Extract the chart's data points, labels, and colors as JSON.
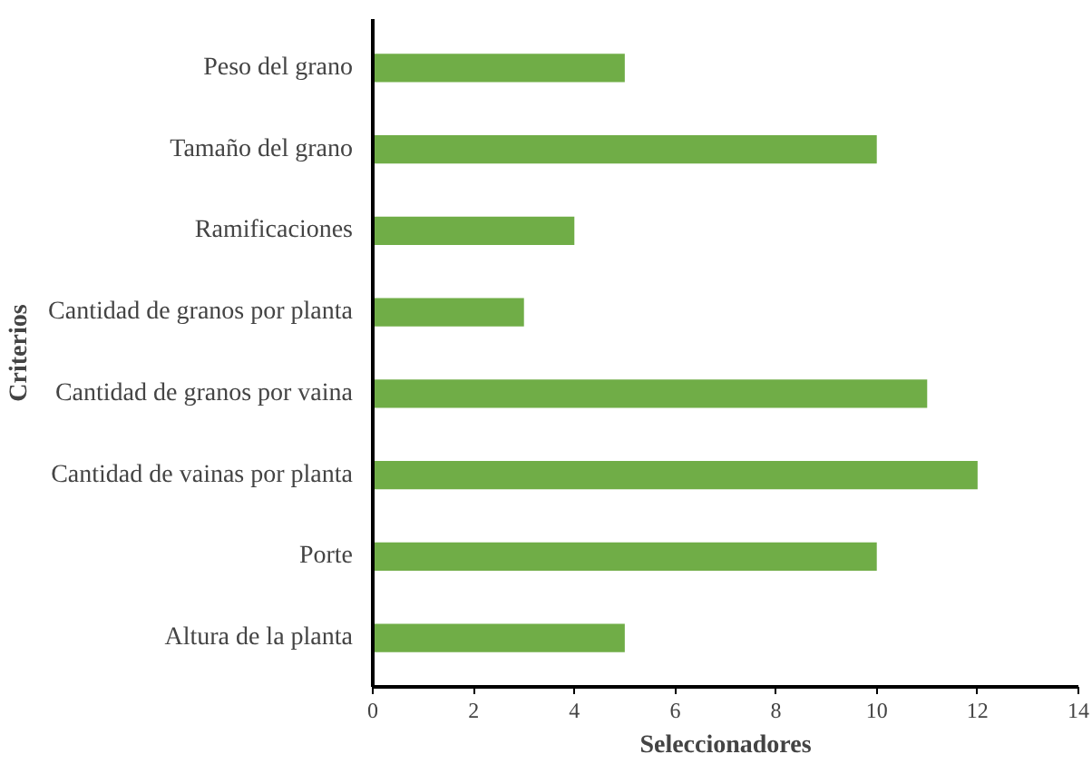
{
  "chart_data": {
    "type": "bar",
    "orientation": "horizontal",
    "xlabel": "Seleccionadores",
    "ylabel": "Criterios",
    "categories": [
      "Peso del grano",
      "Tamaño del grano",
      "Ramificaciones",
      "Cantidad de granos por planta",
      "Cantidad de granos por vaina",
      "Cantidad de vainas por planta",
      "Porte",
      "Altura de la planta"
    ],
    "values": [
      5,
      10,
      4,
      3,
      11,
      12,
      10,
      5
    ],
    "color": "#70ad47",
    "xlim": [
      0,
      14
    ],
    "xticks": [
      0,
      2,
      4,
      6,
      8,
      10,
      12,
      14
    ],
    "grid": false
  }
}
